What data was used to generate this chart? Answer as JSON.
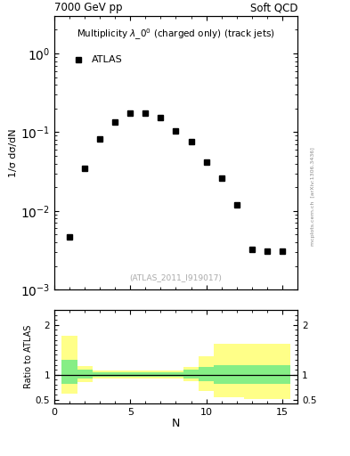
{
  "title_left": "7000 GeV pp",
  "title_right": "Soft QCD",
  "plot_label": "Multiplicity $\\lambda$_0$^0$ (charged only) (track jets)",
  "legend_label": "ATLAS",
  "watermark": "(ATLAS_2011_I919017)",
  "side_text": "mcplots.cern.ch  [arXiv:1306.3436]",
  "xlabel": "N",
  "ylabel_main": "1/σ dσ/dN",
  "ylabel_ratio": "Ratio to ATLAS",
  "data_x": [
    1,
    2,
    3,
    4,
    5,
    6,
    7,
    8,
    9,
    10,
    11,
    12,
    13,
    14,
    15
  ],
  "data_y": [
    0.0047,
    0.035,
    0.083,
    0.135,
    0.175,
    0.175,
    0.155,
    0.105,
    0.075,
    0.042,
    0.026,
    0.012,
    0.0032,
    0.0031,
    0.0031
  ],
  "ylim_main_lo": 0.001,
  "ylim_main_hi": 3.0,
  "ylim_ratio_lo": 0.42,
  "ylim_ratio_hi": 2.3,
  "rx": [
    1,
    2,
    3,
    4,
    5,
    6,
    7,
    8,
    9,
    10,
    11,
    12,
    13,
    14,
    15
  ],
  "green_top": [
    1.3,
    1.1,
    1.05,
    1.05,
    1.05,
    1.05,
    1.05,
    1.05,
    1.1,
    1.15,
    1.2,
    1.2,
    1.2,
    1.2,
    1.2
  ],
  "green_bot": [
    0.82,
    0.92,
    0.96,
    0.96,
    0.96,
    0.96,
    0.96,
    0.96,
    0.92,
    0.87,
    0.82,
    0.82,
    0.82,
    0.82,
    0.82
  ],
  "yellow_top": [
    1.78,
    1.18,
    1.08,
    1.08,
    1.08,
    1.08,
    1.08,
    1.08,
    1.15,
    1.38,
    1.62,
    1.62,
    1.62,
    1.62,
    1.62
  ],
  "yellow_bot": [
    0.62,
    0.85,
    0.93,
    0.93,
    0.93,
    0.93,
    0.93,
    0.93,
    0.87,
    0.68,
    0.55,
    0.55,
    0.52,
    0.52,
    0.52
  ],
  "data_color": "#000000",
  "marker": "s",
  "marker_size": 4,
  "green_color": "#86EE86",
  "yellow_color": "#FFFF88",
  "bg_color": "#ffffff"
}
